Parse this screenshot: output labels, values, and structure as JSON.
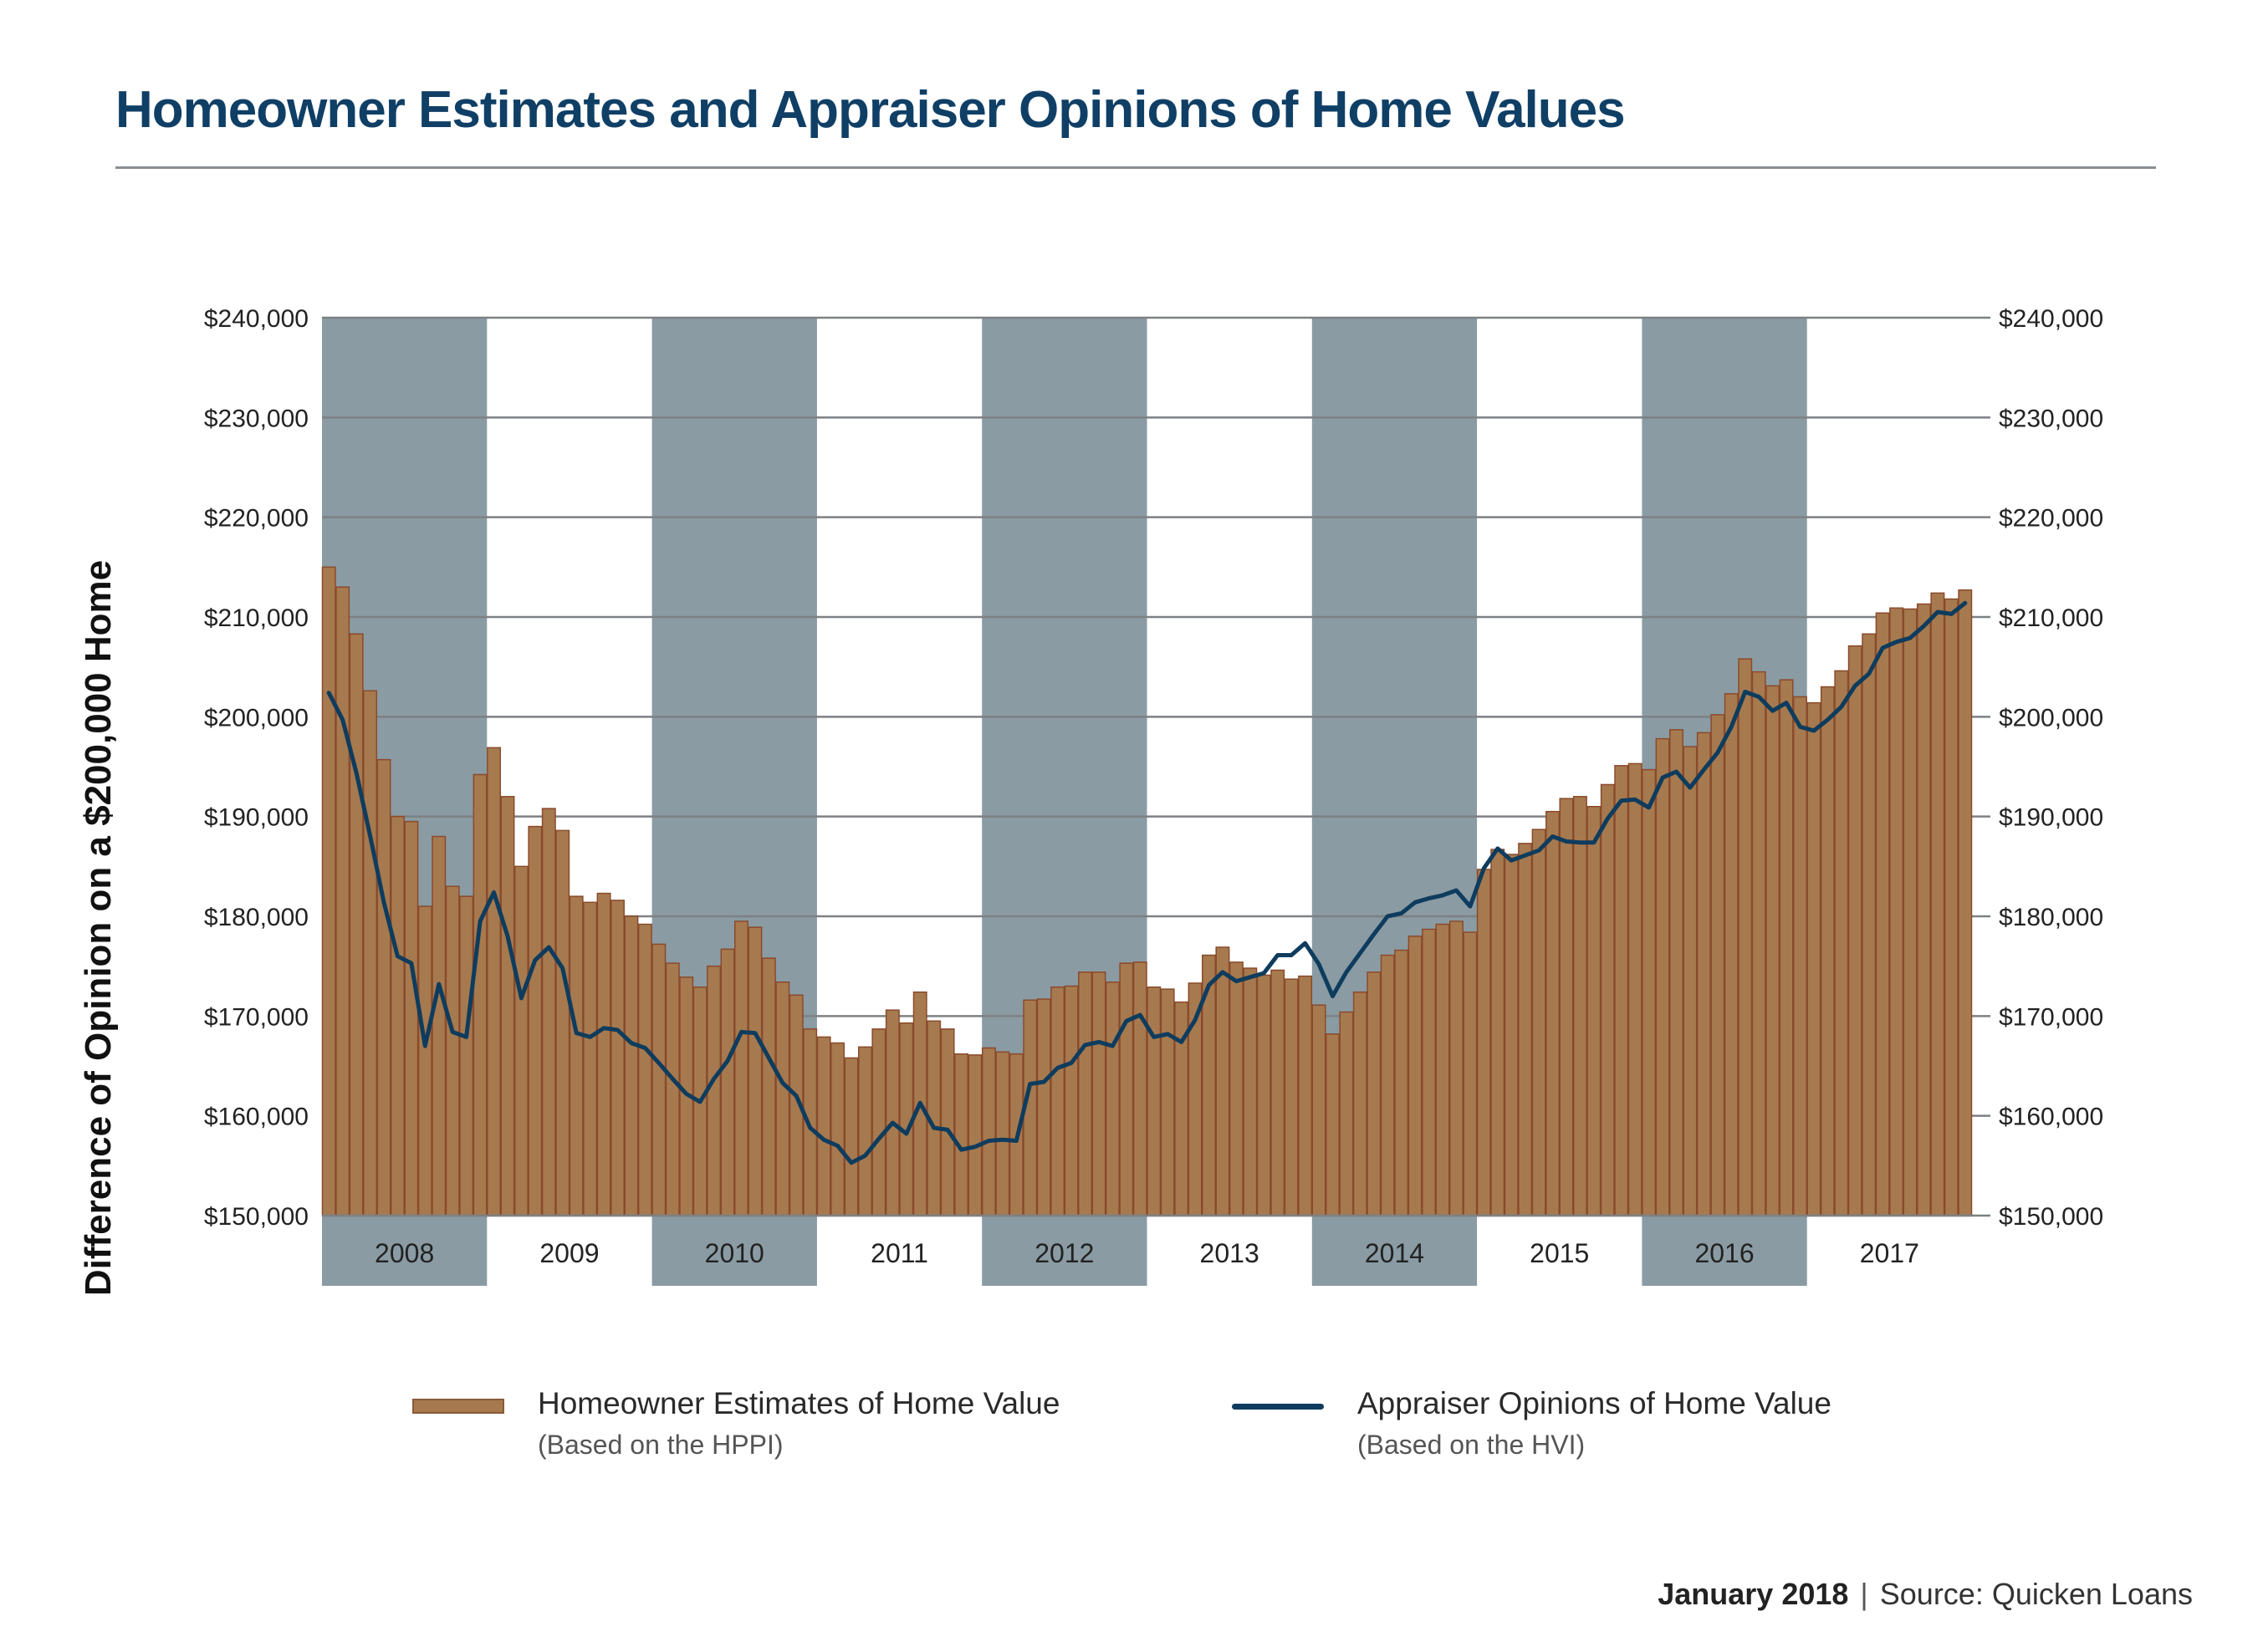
{
  "title": "Homeowner Estimates and Appraiser Opinions of Home Values",
  "footer": {
    "date": "January 2018",
    "separator": "|",
    "source": "Source: Quicken Loans"
  },
  "legend": {
    "bars_label": "Homeowner Estimates of Home Value",
    "bars_sub": "(Based on the HPPI)",
    "line_label": "Appraiser Opinions of Home Value",
    "line_sub": "(Based on the HVI)"
  },
  "colors": {
    "bar_fill": "#a67a4e",
    "bar_edge": "#8a4a2c",
    "line": "#0e3c5e",
    "band": "#8a9ba3",
    "title": "#103f66"
  },
  "chart_data": {
    "type": "bar",
    "title": "Homeowner Estimates and Appraiser Opinions of Home Values",
    "ylabel": "Difference of Opinion on a $200,000 Home",
    "ylim": [
      150000,
      240000
    ],
    "y_ticks": [
      "$150,000",
      "$160,000",
      "$170,000",
      "$180,000",
      "$190,000",
      "$200,000",
      "$210,000",
      "$220,000",
      "$230,000",
      "$240,000"
    ],
    "y_tick_values": [
      150000,
      160000,
      170000,
      180000,
      190000,
      200000,
      210000,
      220000,
      230000,
      240000
    ],
    "years": [
      "2008",
      "2009",
      "2010",
      "2011",
      "2012",
      "2013",
      "2014",
      "2015",
      "2016",
      "2017"
    ],
    "shaded_years": [
      "2008",
      "2010",
      "2012",
      "2014",
      "2016"
    ],
    "months_per_year": 12,
    "grid": true,
    "legend_position": "bottom",
    "series": [
      {
        "name": "Homeowner Estimates of Home Value",
        "sub": "(Based on the HPPI)",
        "type": "bar",
        "values": [
          215000,
          213000,
          208300,
          202600,
          195700,
          190000,
          189500,
          181000,
          188000,
          183000,
          182000,
          194200,
          196900,
          192000,
          185000,
          189000,
          190800,
          188600,
          182000,
          181400,
          182300,
          181600,
          180000,
          179200,
          177200,
          175300,
          173900,
          172900,
          175000,
          176700,
          179500,
          178900,
          175800,
          173400,
          172100,
          168700,
          167900,
          167300,
          165800,
          166900,
          168700,
          170600,
          169300,
          172400,
          169500,
          168700,
          166200,
          166100,
          166800,
          166400,
          166200,
          171600,
          171700,
          172900,
          173000,
          174400,
          174400,
          173400,
          175300,
          175400,
          172900,
          172700,
          171400,
          173300,
          176100,
          176900,
          175400,
          174800,
          174100,
          174600,
          173700,
          174000,
          171100,
          168200,
          170400,
          172400,
          174400,
          176100,
          176600,
          178000,
          178700,
          179200,
          179500,
          178400,
          184700,
          186700,
          186200,
          187300,
          188700,
          190500,
          191800,
          192000,
          191000,
          193200,
          195100,
          195300,
          194700,
          197800,
          198700,
          197000,
          198400,
          200200,
          202300,
          205800,
          204500,
          203100,
          203700,
          202000,
          201400,
          203000,
          204600,
          207100,
          208300,
          210400,
          210900,
          210800,
          211300,
          212400,
          211800,
          212700
        ]
      },
      {
        "name": "Appraiser Opinions of Home Value",
        "sub": "(Based on the HVI)",
        "type": "line",
        "values": [
          202400,
          199700,
          194400,
          188100,
          181400,
          176000,
          175300,
          167000,
          173200,
          168400,
          167900,
          179500,
          182400,
          178000,
          171800,
          175600,
          176900,
          174800,
          168300,
          167900,
          168800,
          168600,
          167300,
          166800,
          165300,
          163700,
          162200,
          161400,
          163700,
          165500,
          168400,
          168300,
          165800,
          163300,
          162000,
          158800,
          157600,
          157000,
          155300,
          156000,
          157700,
          159300,
          158200,
          161300,
          158800,
          158600,
          156600,
          156900,
          157500,
          157600,
          157500,
          163200,
          163400,
          164800,
          165300,
          167100,
          167400,
          167000,
          169500,
          170100,
          167900,
          168200,
          167400,
          169600,
          173100,
          174400,
          173500,
          173900,
          174300,
          176100,
          176100,
          177300,
          175200,
          172000,
          174400,
          176300,
          178200,
          180000,
          180300,
          181400,
          181800,
          182100,
          182600,
          181000,
          184800,
          186800,
          185600,
          186100,
          186600,
          188000,
          187500,
          187400,
          187400,
          189800,
          191600,
          191700,
          190900,
          193900,
          194500,
          192900,
          194700,
          196400,
          199000,
          202500,
          202000,
          200600,
          201400,
          199000,
          198600,
          199700,
          201000,
          203100,
          204300,
          206900,
          207500,
          207900,
          209100,
          210500,
          210300,
          211400
        ]
      }
    ]
  }
}
